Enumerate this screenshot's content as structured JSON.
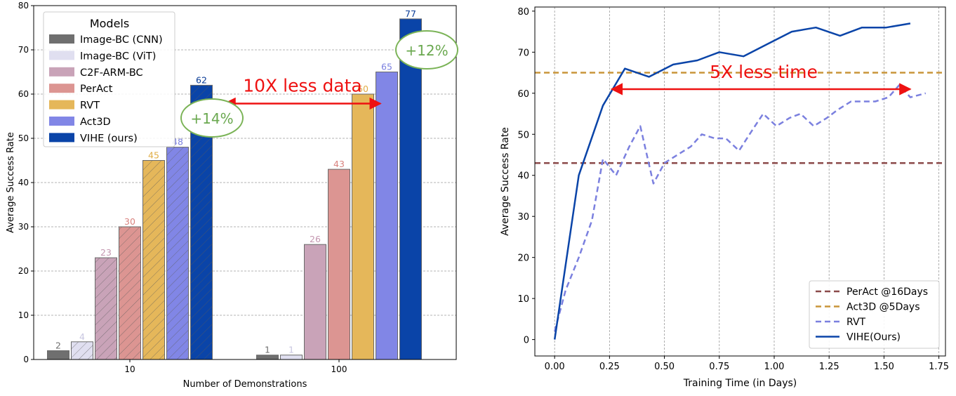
{
  "chart_data": [
    {
      "type": "bar",
      "xlabel": "Number of Demonstrations",
      "ylabel": "Average Success Rate",
      "ylim": [
        0,
        80
      ],
      "yticks": [
        "0",
        "10",
        "20",
        "30",
        "40",
        "50",
        "60",
        "70",
        "80"
      ],
      "categories": [
        "10",
        "100"
      ],
      "legend_title": "Models",
      "legend_position": "top-left",
      "grid": "horizontal dashed",
      "series": [
        {
          "name": "Image-BC (CNN)",
          "values": [
            2,
            1
          ],
          "color": "#6f6f6f",
          "label_color": "#6f6f6f",
          "hatch": false
        },
        {
          "name": "Image-BC (ViT)",
          "values": [
            4,
            1
          ],
          "color": "#e0dff0",
          "label_color": "#c8c6e0",
          "hatch": true
        },
        {
          "name": "C2F-ARM-BC",
          "values": [
            23,
            26
          ],
          "color": "#c9a3b8",
          "label_color": "#c497b0",
          "hatch": true
        },
        {
          "name": "PerAct",
          "values": [
            30,
            43
          ],
          "color": "#dc9592",
          "label_color": "#d9827e",
          "hatch": true
        },
        {
          "name": "RVT",
          "values": [
            45,
            60
          ],
          "color": "#e5b75a",
          "label_color": "#e0ad45",
          "hatch": true
        },
        {
          "name": "Act3D",
          "values": [
            48,
            65
          ],
          "color": "#8186e6",
          "label_color": "#7b80df",
          "hatch": true
        },
        {
          "name": "VIHE (ours)",
          "values": [
            62,
            77
          ],
          "color": "#0a44a8",
          "label_color": "#0a3c96",
          "hatch": true
        }
      ],
      "annotations": {
        "arrow_text": "10X less data",
        "arrow_from": {
          "category": "100",
          "y": 65
        },
        "arrow_to": {
          "category": "10",
          "y": 65
        },
        "bubble_10": "+14%",
        "bubble_100": "+12%"
      }
    },
    {
      "type": "line",
      "xlabel": "Training Time (in Days)",
      "ylabel": "Average Success Rate",
      "xlim": [
        -0.09,
        1.78
      ],
      "ylim": [
        -4,
        81
      ],
      "xticks": [
        "0.00",
        "0.25",
        "0.50",
        "0.75",
        "1.00",
        "1.25",
        "1.50",
        "1.75"
      ],
      "yticks": [
        "0",
        "10",
        "20",
        "30",
        "40",
        "50",
        "60",
        "70",
        "80"
      ],
      "grid": "vertical dashed",
      "legend_position": "bottom-right",
      "series": [
        {
          "name": "PerAct @16Days",
          "style": "hline",
          "dash": true,
          "color": "#8b4a4a",
          "y": 43
        },
        {
          "name": "Act3D @5Days",
          "style": "hline",
          "dash": true,
          "color": "#c9953a",
          "y": 65
        },
        {
          "name": "RVT",
          "style": "line",
          "dash": true,
          "color": "#7b80df",
          "x": [
            0.0,
            0.05,
            0.11,
            0.17,
            0.22,
            0.28,
            0.34,
            0.39,
            0.45,
            0.5,
            0.56,
            0.62,
            0.67,
            0.73,
            0.78,
            0.84,
            0.9,
            0.95,
            1.01,
            1.07,
            1.12,
            1.18,
            1.24,
            1.29,
            1.35,
            1.41,
            1.46,
            1.52,
            1.57,
            1.62,
            1.69
          ],
          "y": [
            2,
            12,
            20,
            29,
            44,
            40,
            47,
            52,
            38,
            43,
            45,
            47,
            50,
            49,
            49,
            46,
            51,
            55,
            52,
            54,
            55,
            52,
            54,
            56,
            58,
            58,
            58,
            59,
            62,
            59,
            60
          ]
        },
        {
          "name": "VIHE(Ours)",
          "style": "line",
          "dash": false,
          "color": "#0a44a8",
          "x": [
            0.0,
            0.11,
            0.22,
            0.32,
            0.43,
            0.54,
            0.65,
            0.75,
            0.86,
            0.97,
            1.08,
            1.19,
            1.3,
            1.4,
            1.51,
            1.62
          ],
          "y": [
            0,
            40,
            57,
            66,
            64,
            67,
            68,
            70,
            69,
            72,
            75,
            76,
            74,
            76,
            76,
            77
          ]
        }
      ],
      "annotations": {
        "arrow_text": "5X less time",
        "arrow_from_x": 0.26,
        "arrow_to_x": 1.62,
        "arrow_y": 61
      }
    }
  ]
}
